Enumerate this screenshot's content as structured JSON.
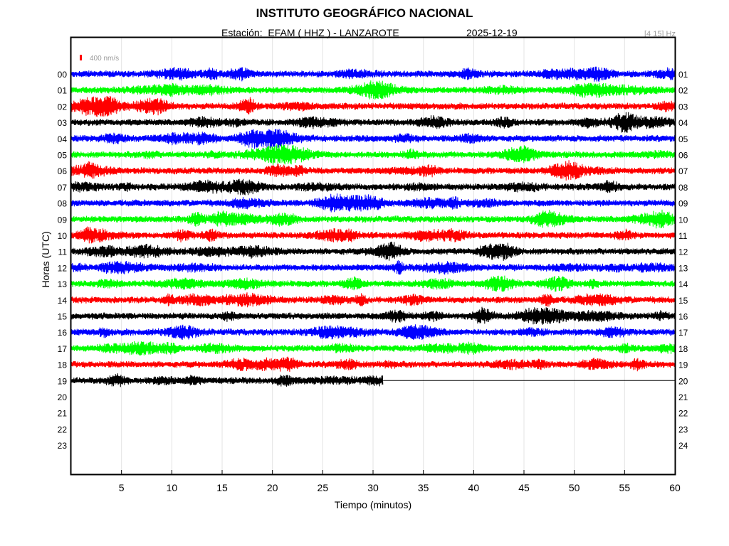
{
  "header": {
    "title": "INSTITUTO GEOGRÁFICO NACIONAL",
    "station_line": "Estación:  EFAM ( HHZ ) - LANZAROTE",
    "date": "2025-12-19",
    "filter_band": "[4 15] Hz"
  },
  "chart_data": {
    "type": "line",
    "title": "INSTITUTO GEOGRÁFICO NACIONAL",
    "xlabel": "Tiempo (minutos)",
    "ylabel": "Horas (UTC)",
    "xlim": [
      0,
      60
    ],
    "x_ticks": [
      5,
      10,
      15,
      20,
      25,
      30,
      35,
      40,
      45,
      50,
      55,
      60
    ],
    "left_hour_labels": [
      "00",
      "01",
      "02",
      "03",
      "04",
      "05",
      "06",
      "07",
      "08",
      "09",
      "10",
      "11",
      "12",
      "13",
      "14",
      "15",
      "16",
      "17",
      "18",
      "19",
      "20",
      "21",
      "22",
      "23"
    ],
    "right_hour_labels": [
      "01",
      "02",
      "03",
      "04",
      "05",
      "06",
      "07",
      "08",
      "09",
      "10",
      "11",
      "12",
      "13",
      "14",
      "15",
      "16",
      "17",
      "18",
      "19",
      "20",
      "21",
      "22",
      "23",
      "24"
    ],
    "scale_bar_label": "400 nm/s",
    "trace_color_cycle": [
      "#0000ff",
      "#00ff00",
      "#ff0000",
      "#000000"
    ],
    "scale_bar_color": "#ff0000",
    "grid": true,
    "hours_recorded": 20,
    "last_hour_end_minutes": 31
  }
}
